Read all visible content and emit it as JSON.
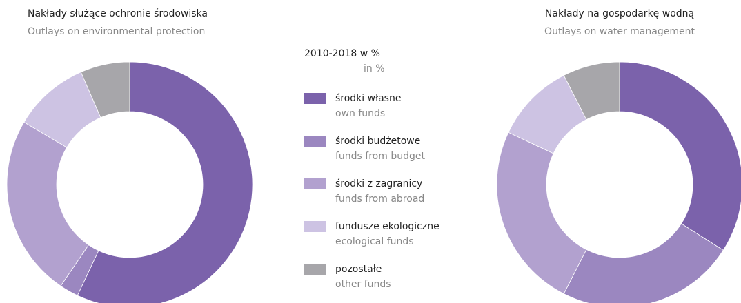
{
  "chart_data": [
    {
      "type": "donut",
      "title": "Nakłady służące ochronie środowiska",
      "subtitle": "Outlays on environmental protection",
      "values": [
        57,
        2.5,
        24,
        10,
        6.5
      ]
    },
    {
      "type": "donut",
      "title": "Nakłady na gospodarkę wodną",
      "subtitle": "Outlays on water management",
      "values": [
        34,
        23.5,
        24.5,
        10.5,
        7.5
      ]
    }
  ],
  "legend": {
    "title": "2010-2018 w %",
    "subtitle": "in %",
    "items": [
      {
        "label": "środki własne",
        "sublabel": "own funds",
        "color": "#7b62ab"
      },
      {
        "label": "środki budżetowe",
        "sublabel": "funds from budget",
        "color": "#9b87c0"
      },
      {
        "label": "środki z zagranicy",
        "sublabel": "funds from abroad",
        "color": "#b2a1cf"
      },
      {
        "label": "fundusze ekologiczne",
        "sublabel": "ecological funds",
        "color": "#cdc3e3"
      },
      {
        "label": "pozostałe",
        "sublabel": "other funds",
        "color": "#a7a6aa"
      }
    ]
  }
}
